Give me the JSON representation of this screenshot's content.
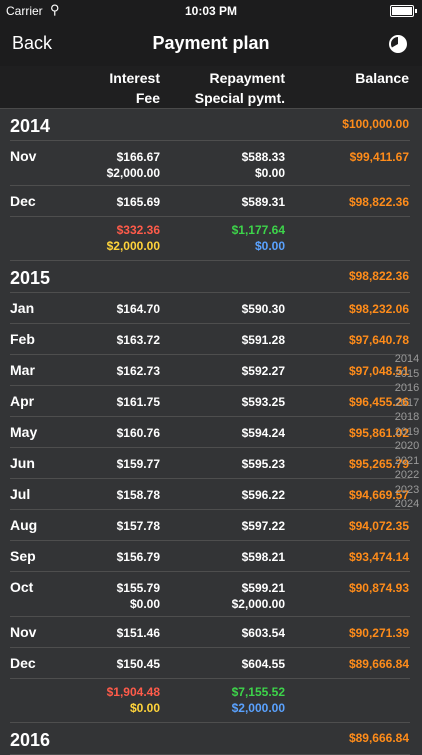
{
  "status_bar": {
    "carrier": "Carrier",
    "time": "10:03 PM"
  },
  "nav": {
    "back_label": "Back",
    "title": "Payment plan",
    "chart_icon": "pie-chart-icon"
  },
  "columns": {
    "interest": "Interest",
    "fee": "Fee",
    "repayment": "Repayment",
    "special": "Special pymt.",
    "balance": "Balance"
  },
  "years": [
    {
      "year": "2014",
      "balance": "$100,000.00",
      "months": [
        {
          "name": "Nov",
          "interest": "$166.67",
          "fee": "$2,000.00",
          "repayment": "$588.33",
          "special": "$0.00",
          "balance": "$99,411.67"
        },
        {
          "name": "Dec",
          "interest": "$165.69",
          "repayment": "$589.31",
          "balance": "$98,822.36"
        }
      ],
      "totals": {
        "interest": "$332.36",
        "fee": "$2,000.00",
        "repayment": "$1,177.64",
        "special": "$0.00"
      }
    },
    {
      "year": "2015",
      "balance": "$98,822.36",
      "months": [
        {
          "name": "Jan",
          "interest": "$164.70",
          "repayment": "$590.30",
          "balance": "$98,232.06"
        },
        {
          "name": "Feb",
          "interest": "$163.72",
          "repayment": "$591.28",
          "balance": "$97,640.78"
        },
        {
          "name": "Mar",
          "interest": "$162.73",
          "repayment": "$592.27",
          "balance": "$97,048.51"
        },
        {
          "name": "Apr",
          "interest": "$161.75",
          "repayment": "$593.25",
          "balance": "$96,455.26"
        },
        {
          "name": "May",
          "interest": "$160.76",
          "repayment": "$594.24",
          "balance": "$95,861.02"
        },
        {
          "name": "Jun",
          "interest": "$159.77",
          "repayment": "$595.23",
          "balance": "$95,265.79"
        },
        {
          "name": "Jul",
          "interest": "$158.78",
          "repayment": "$596.22",
          "balance": "$94,669.57"
        },
        {
          "name": "Aug",
          "interest": "$157.78",
          "repayment": "$597.22",
          "balance": "$94,072.35"
        },
        {
          "name": "Sep",
          "interest": "$156.79",
          "repayment": "$598.21",
          "balance": "$93,474.14"
        },
        {
          "name": "Oct",
          "interest": "$155.79",
          "fee": "$0.00",
          "repayment": "$599.21",
          "special": "$2,000.00",
          "balance": "$90,874.93"
        },
        {
          "name": "Nov",
          "interest": "$151.46",
          "repayment": "$603.54",
          "balance": "$90,271.39"
        },
        {
          "name": "Dec",
          "interest": "$150.45",
          "repayment": "$604.55",
          "balance": "$89,666.84"
        }
      ],
      "totals": {
        "interest": "$1,904.48",
        "fee": "$0.00",
        "repayment": "$7,155.52",
        "special": "$2,000.00"
      }
    },
    {
      "year": "2016",
      "balance": "$89,666.84",
      "months": []
    }
  ],
  "year_index": [
    "2014",
    "2015",
    "2016",
    "2017",
    "2018",
    "2019",
    "2020",
    "2021",
    "2022",
    "2023",
    "2024"
  ],
  "colors": {
    "balance": "#ff8c1a",
    "interest_total": "#ff5b4a",
    "fee_total": "#ffd43b",
    "repayment_total": "#3dd44a",
    "special_total": "#5aa2ff"
  }
}
